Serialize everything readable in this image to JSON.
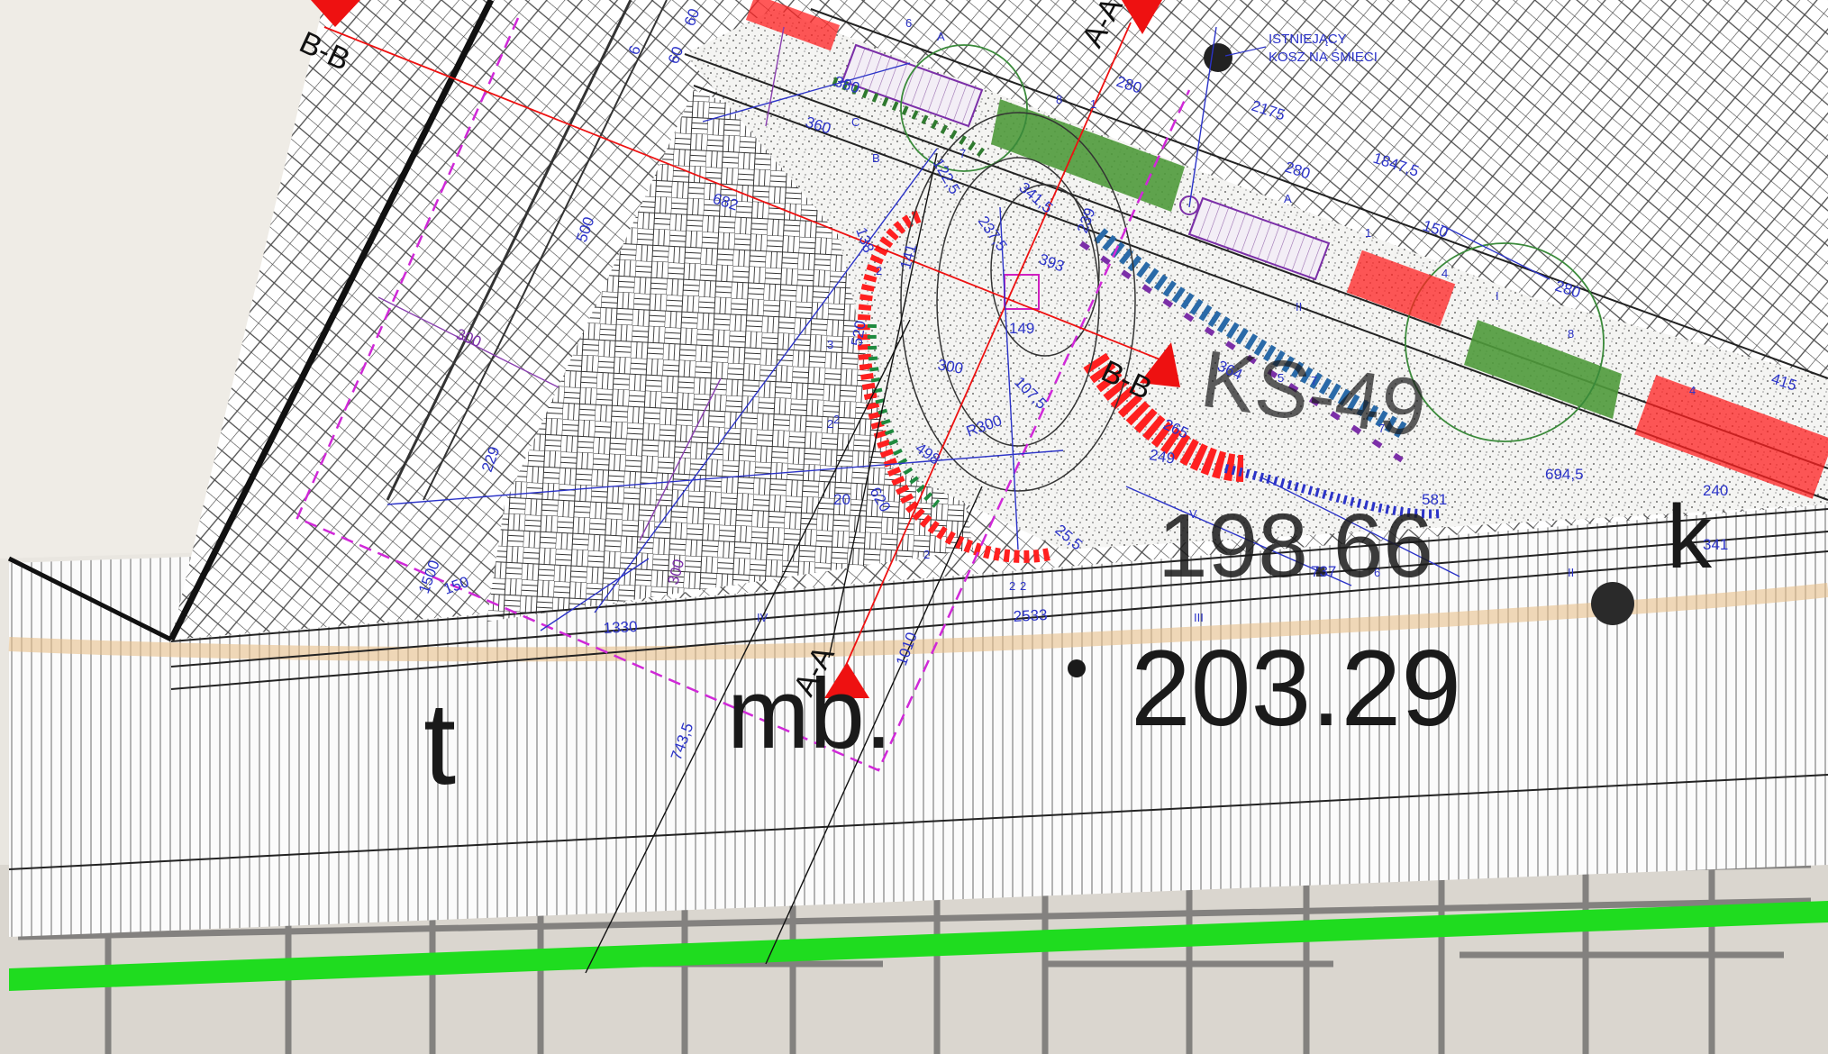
{
  "section_marks": {
    "b_top": "B-B",
    "a_top": "A-A",
    "b_mid": "B-B",
    "a_bottom": "A-A"
  },
  "map_labels": {
    "elev_main": "203.29",
    "elev_second": "198.66",
    "mb": "mb.",
    "t": "t",
    "k": "k",
    "ks": "KS-49"
  },
  "note": {
    "line1": "ISTNIEJĄCY",
    "line2": "KOSZ NA ŚMIECI"
  },
  "dimensions": {
    "d6a": "6",
    "d60a": "60",
    "d60b": "60",
    "d380": "380",
    "d360": "360",
    "d280a": "280",
    "d2175": "2175",
    "d280b": "280",
    "d1847": "1847,5",
    "d150": "150",
    "d280c": "280",
    "d415": "415",
    "d500": "500",
    "d682": "682",
    "d1225": "122,5",
    "d3415": "341,5",
    "d2375": "237,5",
    "d393": "393",
    "d239": "239",
    "d149": "149",
    "d1075": "107,5",
    "d300a": "300",
    "d300b": "300",
    "d138": "138",
    "d141": "141",
    "d520": "520",
    "d498": "498",
    "d620": "620",
    "dR300": "R300",
    "d229": "229",
    "d364": "364",
    "d265": "265",
    "d249": "249",
    "d6945": "694,5",
    "d581": "581",
    "d240": "240",
    "d341": "341",
    "d737": "737",
    "d1330": "1330",
    "d2533": "2533",
    "d1010": "1010",
    "d300c": "300",
    "d7435": "743,5",
    "d1500": "1500",
    "d150b": "150",
    "d255": "25,5",
    "d20": "20"
  },
  "tags": {
    "t6a": "6",
    "tA1": "A",
    "t8a": "8",
    "t1a": "1",
    "tC": "C",
    "tB": "B",
    "t7a": "7",
    "tA2": "A",
    "t1b": "1",
    "t4a": "4",
    "tI": "I",
    "t8b": "8",
    "tII": "II",
    "t5": "5",
    "t7b": "7",
    "t7c": "7",
    "t4b": "4",
    "tIII": "III",
    "tIV": "IV",
    "tV": "V",
    "tIIb": "II",
    "t6b": "6",
    "t2a": "2",
    "t2b": "2",
    "t3": "3",
    "t2c": "2",
    "t2d": "2",
    "t2e": "2",
    "t2f": "2"
  },
  "colors": {
    "dimension": "#2b33c8",
    "section_marker": "#ee1111",
    "planter": "#ff2020",
    "lawn": "#4f9a3b",
    "road_edge": "#22dd22",
    "bench": "#d77de0"
  }
}
